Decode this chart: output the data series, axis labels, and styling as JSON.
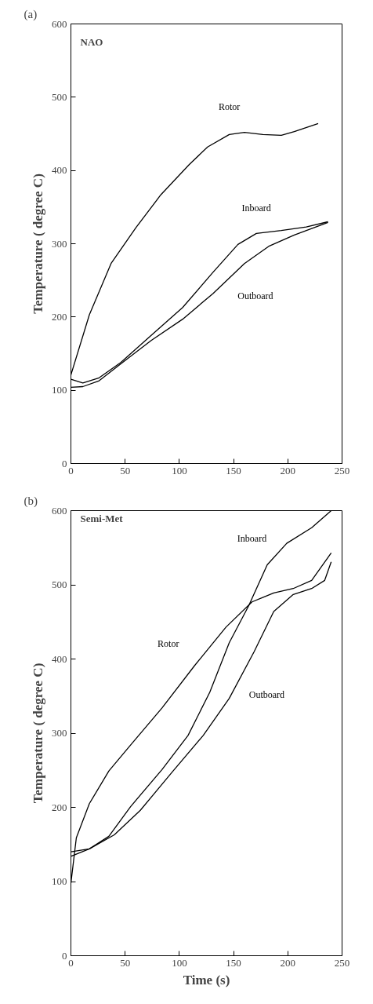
{
  "chart_data": [
    {
      "type": "line",
      "title": "NAO",
      "ylabel": "Temperature ( degree C)",
      "annotations": [
        "(a)"
      ],
      "xlim": [
        0,
        250
      ],
      "ylim": [
        0,
        600
      ],
      "xticks": [
        0,
        50,
        100,
        150,
        200,
        250
      ],
      "yticks": [
        0,
        100,
        200,
        300,
        400,
        500,
        600
      ],
      "grid": false,
      "series": [
        {
          "name": "Rotor",
          "color": "#000000",
          "x": [
            0,
            17,
            37,
            60,
            83,
            109,
            126,
            146,
            160,
            177,
            194,
            206,
            228
          ],
          "values": [
            121,
            203,
            273,
            322,
            367,
            408,
            432,
            449,
            452,
            449,
            448,
            453,
            464
          ]
        },
        {
          "name": "Inboard",
          "color": "#000000",
          "x": [
            0,
            11,
            26,
            46,
            74,
            103,
            131,
            154,
            171,
            194,
            217,
            237
          ],
          "values": [
            115,
            110,
            117,
            138,
            175,
            213,
            261,
            299,
            314,
            318,
            323,
            330
          ]
        },
        {
          "name": "Outboard",
          "color": "#000000",
          "x": [
            0,
            11,
            26,
            46,
            74,
            103,
            131,
            160,
            183,
            206,
            237
          ],
          "values": [
            104,
            105,
            113,
            136,
            168,
            197,
            232,
            273,
            297,
            312,
            329
          ]
        }
      ]
    },
    {
      "type": "line",
      "title": "Semi-Met",
      "xlabel": "Time (s)",
      "ylabel": "Temperature ( degree C)",
      "annotations": [
        "(b)"
      ],
      "xlim": [
        0,
        250
      ],
      "ylim": [
        0,
        600
      ],
      "xticks": [
        0,
        50,
        100,
        150,
        200,
        250
      ],
      "yticks": [
        0,
        100,
        200,
        300,
        400,
        500,
        600
      ],
      "grid": false,
      "series": [
        {
          "name": "Rotor",
          "color": "#000000",
          "x": [
            0,
            5,
            17,
            35,
            55,
            84,
            114,
            143,
            167,
            187,
            205,
            222,
            240
          ],
          "values": [
            98,
            159,
            205,
            249,
            284,
            334,
            391,
            443,
            477,
            489,
            495,
            506,
            543
          ]
        },
        {
          "name": "Inboard",
          "color": "#000000",
          "x": [
            0,
            17,
            35,
            55,
            84,
            108,
            128,
            146,
            164,
            181,
            199,
            222,
            240
          ],
          "values": [
            140,
            144,
            161,
            201,
            251,
            297,
            355,
            422,
            472,
            527,
            556,
            577,
            600
          ]
        },
        {
          "name": "Outboard",
          "color": "#000000",
          "x": [
            0,
            17,
            40,
            64,
            93,
            122,
            146,
            169,
            187,
            205,
            222,
            234,
            240
          ],
          "values": [
            134,
            144,
            163,
            196,
            247,
            297,
            347,
            410,
            464,
            487,
            495,
            506,
            531
          ]
        }
      ]
    }
  ]
}
